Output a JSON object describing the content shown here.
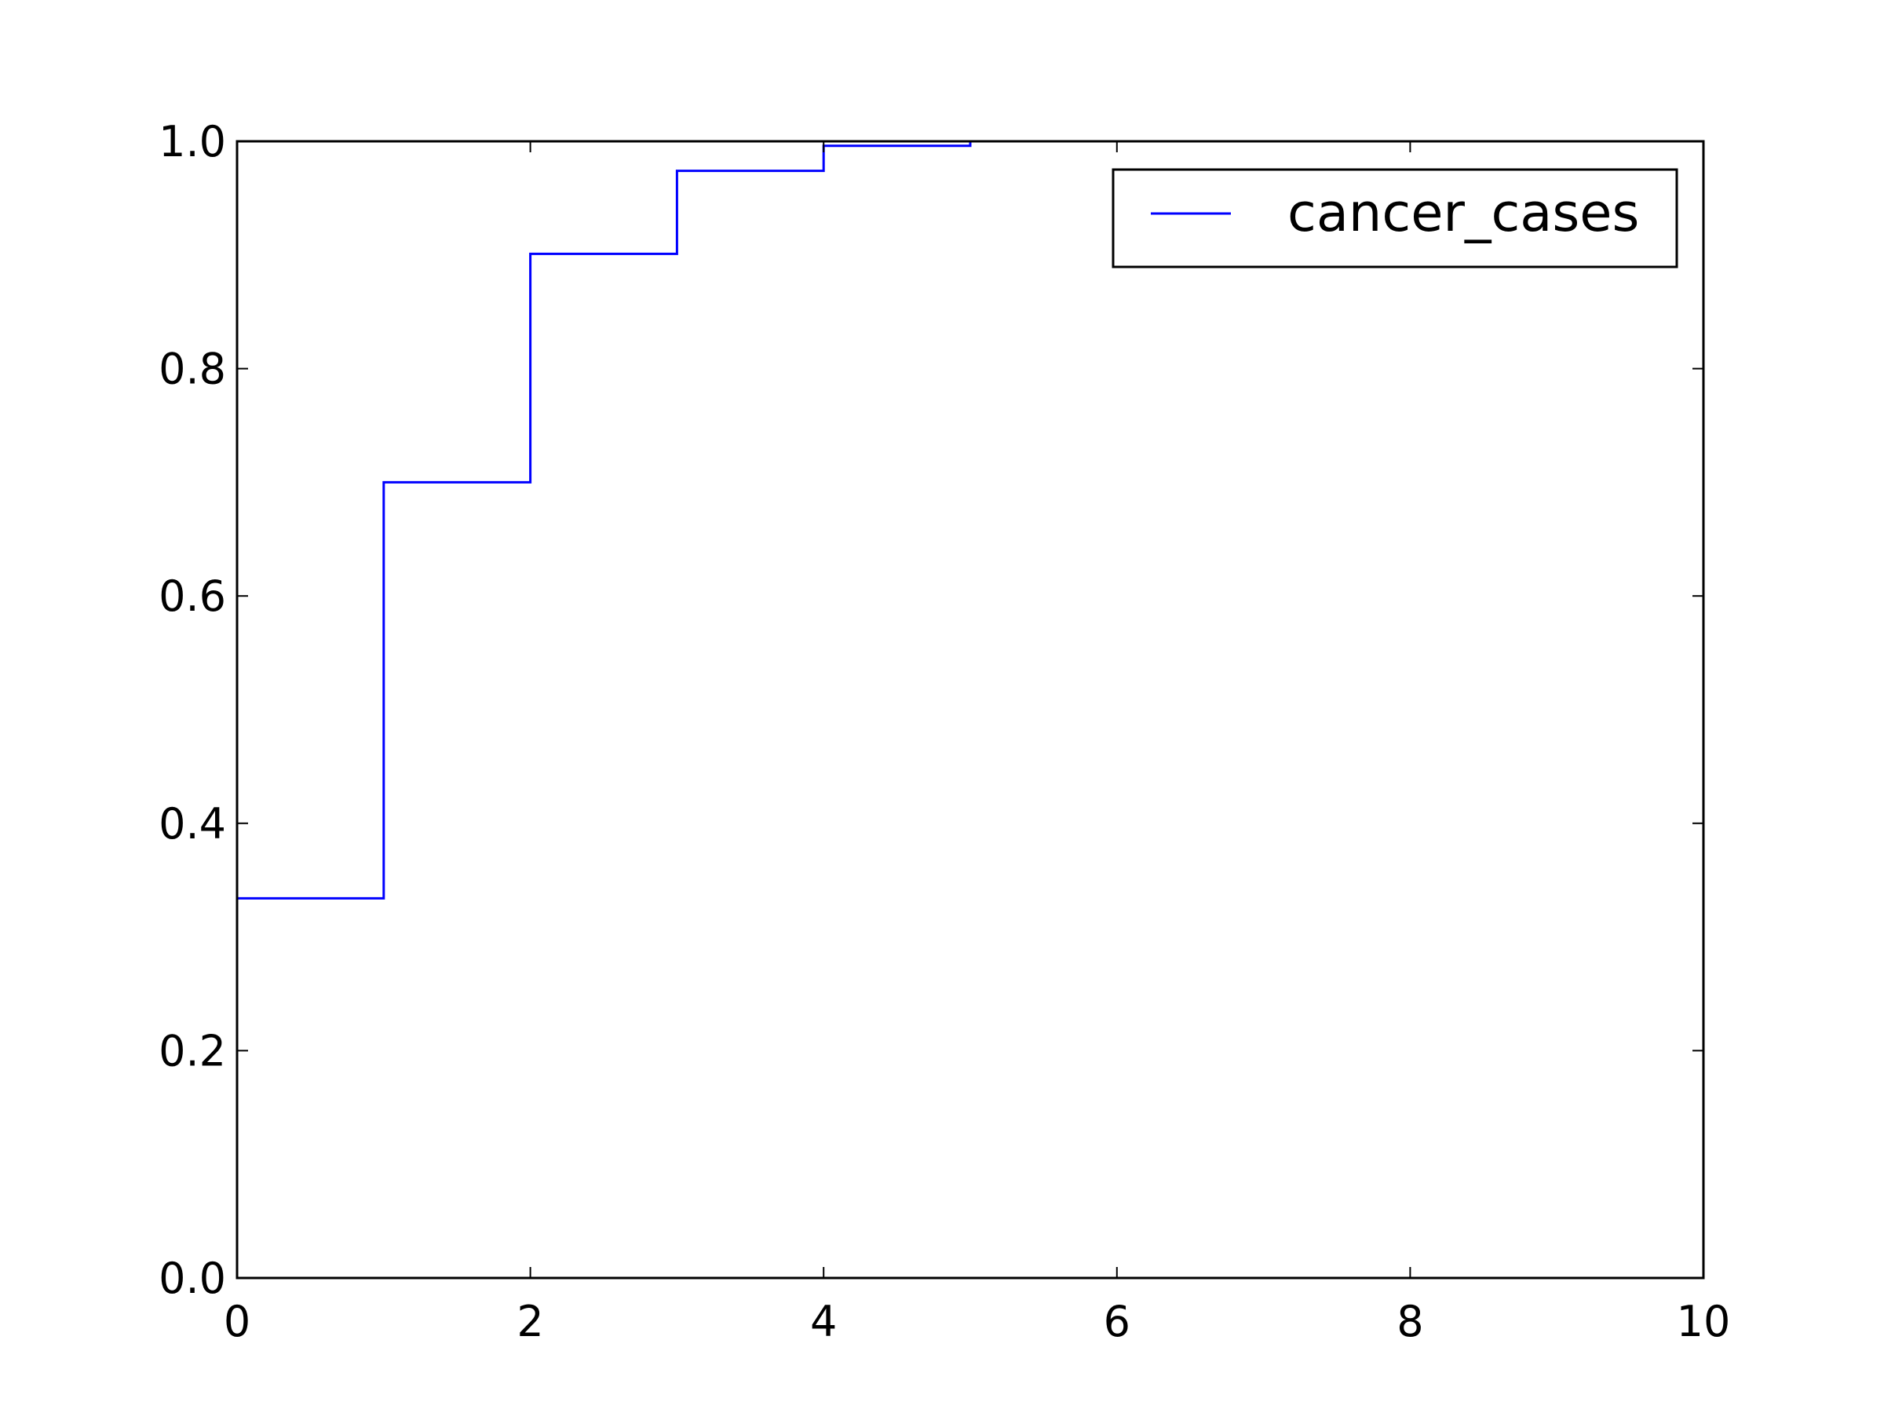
{
  "chart_data": {
    "type": "line",
    "drawstyle": "steps-post",
    "title": "",
    "xlabel": "",
    "ylabel": "",
    "xlim": [
      0,
      10
    ],
    "ylim": [
      0.0,
      1.0
    ],
    "x_ticks": [
      "0",
      "2",
      "4",
      "6",
      "8",
      "10"
    ],
    "y_ticks": [
      "0.0",
      "0.2",
      "0.4",
      "0.6",
      "0.8",
      "1.0"
    ],
    "grid": false,
    "legend_position": "top-right",
    "series": [
      {
        "name": "cancer_cases",
        "color": "#0000ff",
        "x": [
          0,
          1,
          2,
          3,
          4,
          5,
          6
        ],
        "y": [
          0.334,
          0.7,
          0.901,
          0.974,
          0.996,
          1.0,
          1.0
        ]
      }
    ]
  }
}
